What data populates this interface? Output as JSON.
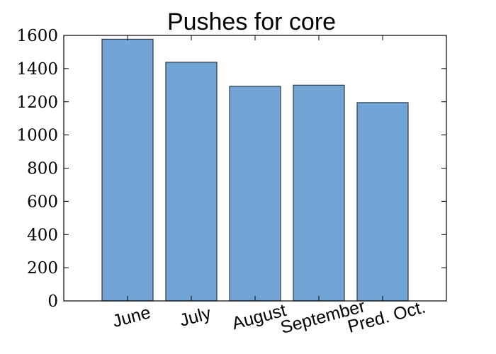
{
  "chart_data": {
    "type": "bar",
    "title": "Pushes for core",
    "xlabel": "",
    "ylabel": "",
    "categories": [
      "June",
      "July",
      "August",
      "September",
      "Pred. Oct."
    ],
    "values": [
      1577,
      1438,
      1293,
      1300,
      1195
    ],
    "ylim": [
      0,
      1600
    ],
    "yticks": [
      0,
      200,
      400,
      600,
      800,
      1000,
      1200,
      1400,
      1600
    ],
    "grid": false,
    "legend": "none",
    "bar_color": "#72a5d6",
    "bar_edge_color": "#2b3a4a"
  }
}
